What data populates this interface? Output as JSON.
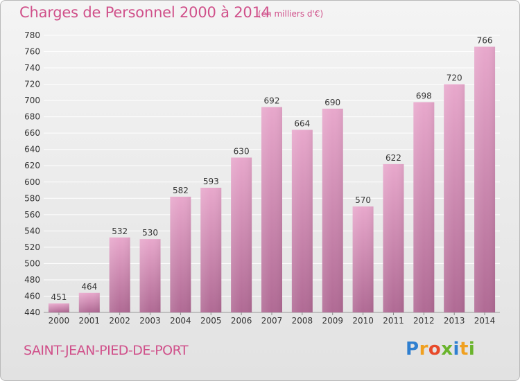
{
  "title": "Charges de Personnel 2000 à 2014",
  "subtitle": "(en milliers d'€)",
  "place": "SAINT-JEAN-PIED-DE-PORT",
  "logo": {
    "text": "Proxiti",
    "letters": [
      {
        "ch": "P",
        "color": "#2f7fd0"
      },
      {
        "ch": "r",
        "color": "#f0a020"
      },
      {
        "ch": "o",
        "color": "#e84a2a"
      },
      {
        "ch": "x",
        "color": "#6ab42c"
      },
      {
        "ch": "i",
        "color": "#2f7fd0"
      },
      {
        "ch": "t",
        "color": "#f0a020"
      },
      {
        "ch": "i",
        "color": "#6ab42c"
      }
    ]
  },
  "colors": {
    "title": "#d0508a",
    "bar_top": "#e8a8cc",
    "bar_bottom": "#b06a94",
    "grid": "#ffffff",
    "axis_text": "#333333"
  },
  "chart_data": {
    "type": "bar",
    "categories": [
      "2000",
      "2001",
      "2002",
      "2003",
      "2004",
      "2005",
      "2006",
      "2007",
      "2008",
      "2009",
      "2010",
      "2011",
      "2012",
      "2013",
      "2014"
    ],
    "values": [
      451,
      464,
      532,
      530,
      582,
      593,
      630,
      692,
      664,
      690,
      570,
      622,
      698,
      720,
      766
    ],
    "ylim": [
      440,
      780
    ],
    "yticks": [
      440,
      460,
      480,
      500,
      520,
      540,
      560,
      580,
      600,
      620,
      640,
      660,
      680,
      700,
      720,
      740,
      760,
      780
    ],
    "grid": true,
    "title": "Charges de Personnel 2000 à 2014",
    "xlabel": "",
    "ylabel": ""
  }
}
